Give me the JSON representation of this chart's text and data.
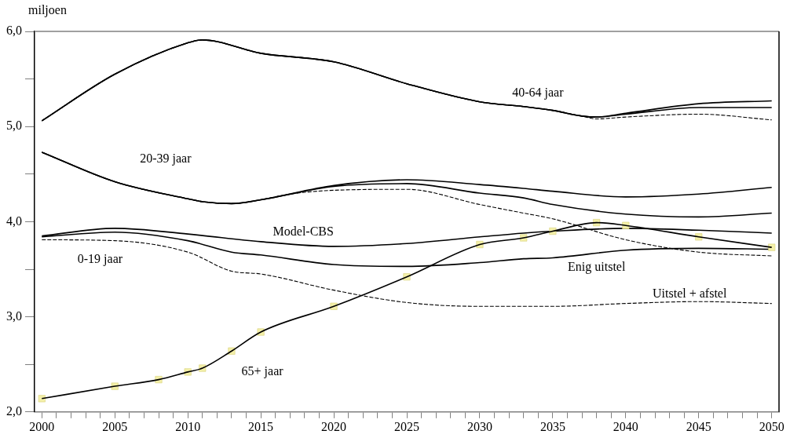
{
  "chart_data": {
    "type": "line",
    "ylabel": "miljoen",
    "xlim": [
      1999.5,
      2050.5
    ],
    "xticks": [
      2000,
      {
        "value": 2001,
        "label": null
      },
      {
        "value": 2002,
        "label": null
      },
      {
        "value": 2003,
        "label": null
      },
      {
        "value": 2004,
        "label": null
      },
      2005,
      {
        "value": 2006,
        "label": null
      },
      {
        "value": 2007,
        "label": null
      },
      {
        "value": 2008,
        "label": null
      },
      {
        "value": 2009,
        "label": null
      },
      2010,
      {
        "value": 2011,
        "label": null
      },
      {
        "value": 2012,
        "label": null
      },
      {
        "value": 2013,
        "label": null
      },
      {
        "value": 2014,
        "label": null
      },
      2015,
      {
        "value": 2016,
        "label": null
      },
      {
        "value": 2017,
        "label": null
      },
      {
        "value": 2018,
        "label": null
      },
      {
        "value": 2019,
        "label": null
      },
      2020,
      {
        "value": 2021,
        "label": null
      },
      {
        "value": 2022,
        "label": null
      },
      {
        "value": 2023,
        "label": null
      },
      {
        "value": 2024,
        "label": null
      },
      2025,
      {
        "value": 2026,
        "label": null
      },
      {
        "value": 2027,
        "label": null
      },
      {
        "value": 2028,
        "label": null
      },
      {
        "value": 2029,
        "label": null
      },
      2030,
      {
        "value": 2031,
        "label": null
      },
      {
        "value": 2032,
        "label": null
      },
      {
        "value": 2033,
        "label": null
      },
      {
        "value": 2034,
        "label": null
      },
      2035,
      {
        "value": 2036,
        "label": null
      },
      {
        "value": 2037,
        "label": null
      },
      {
        "value": 2038,
        "label": null
      },
      {
        "value": 2039,
        "label": null
      },
      2040,
      {
        "value": 2041,
        "label": null
      },
      {
        "value": 2042,
        "label": null
      },
      {
        "value": 2043,
        "label": null
      },
      {
        "value": 2044,
        "label": null
      },
      2045,
      {
        "value": 2046,
        "label": null
      },
      {
        "value": 2047,
        "label": null
      },
      {
        "value": 2048,
        "label": null
      },
      {
        "value": 2049,
        "label": null
      },
      2050
    ],
    "ylim": [
      2,
      6
    ],
    "yticks": [
      {
        "value": 2,
        "label": "2,0"
      },
      {
        "value": 2.5,
        "label": null
      },
      {
        "value": 3,
        "label": "3,0"
      },
      {
        "value": 3.5,
        "label": null
      },
      {
        "value": 4,
        "label": "4,0"
      },
      {
        "value": 4.5,
        "label": null
      },
      {
        "value": 5,
        "label": "5,0"
      },
      {
        "value": 5.5,
        "label": null
      },
      {
        "value": 6,
        "label": "6,0"
      }
    ],
    "grid": false,
    "legend": false,
    "marker": "none",
    "series": [
      {
        "color": "#000000",
        "line_style": "solid",
        "x": [
          2000,
          2005,
          2010,
          2011,
          2015,
          2020,
          2025,
          2030,
          2033,
          2035,
          2037,
          2038,
          2040,
          2045,
          2050
        ],
        "values": [
          5.06,
          5.55,
          5.88,
          5.91,
          5.77,
          5.68,
          5.45,
          5.26,
          5.21,
          5.17,
          5.11,
          5.1,
          5.14,
          5.24,
          5.27
        ]
      },
      {
        "color": "#000000",
        "line_style": "solid",
        "x": [
          2000,
          2005,
          2010,
          2011,
          2015,
          2020,
          2025,
          2030,
          2033,
          2035,
          2037,
          2038,
          2040,
          2045,
          2050
        ],
        "values": [
          5.06,
          5.55,
          5.88,
          5.91,
          5.77,
          5.68,
          5.45,
          5.26,
          5.21,
          5.17,
          5.11,
          5.1,
          5.13,
          5.2,
          5.2
        ]
      },
      {
        "color": "#000000",
        "line_style": "dashed",
        "x": [
          2000,
          2005,
          2010,
          2011,
          2015,
          2020,
          2025,
          2030,
          2033,
          2035,
          2037,
          2038,
          2040,
          2045,
          2050
        ],
        "values": [
          5.06,
          5.55,
          5.88,
          5.91,
          5.77,
          5.68,
          5.45,
          5.26,
          5.21,
          5.17,
          5.11,
          5.08,
          5.1,
          5.13,
          5.07
        ]
      },
      {
        "color": "#000000",
        "line_style": "solid",
        "x": [
          2000,
          2005,
          2010,
          2011,
          2013,
          2015,
          2020,
          2025,
          2030,
          2033,
          2035,
          2040,
          2045,
          2050
        ],
        "values": [
          4.73,
          4.42,
          4.24,
          4.21,
          4.19,
          4.23,
          4.38,
          4.44,
          4.39,
          4.35,
          4.32,
          4.26,
          4.29,
          4.36
        ]
      },
      {
        "color": "#000000",
        "line_style": "solid",
        "x": [
          2000,
          2005,
          2010,
          2011,
          2013,
          2015,
          2020,
          2025,
          2030,
          2033,
          2035,
          2040,
          2045,
          2050
        ],
        "values": [
          4.73,
          4.42,
          4.24,
          4.21,
          4.19,
          4.23,
          4.37,
          4.4,
          4.3,
          4.25,
          4.18,
          4.08,
          4.05,
          4.09
        ]
      },
      {
        "color": "#000000",
        "line_style": "dashed",
        "x": [
          2000,
          2005,
          2010,
          2011,
          2013,
          2015,
          2017,
          2020,
          2025,
          2030,
          2033,
          2035,
          2040,
          2045,
          2050
        ],
        "values": [
          4.73,
          4.42,
          4.24,
          4.21,
          4.19,
          4.23,
          4.29,
          4.33,
          4.34,
          4.18,
          4.09,
          4.03,
          3.81,
          3.68,
          3.64
        ]
      },
      {
        "color": "#000000",
        "line_style": "solid",
        "x": [
          2000,
          2005,
          2010,
          2015,
          2020,
          2025,
          2030,
          2033,
          2035,
          2040,
          2045,
          2050
        ],
        "values": [
          3.85,
          3.93,
          3.87,
          3.79,
          3.74,
          3.77,
          3.84,
          3.88,
          3.9,
          3.93,
          3.91,
          3.88
        ]
      },
      {
        "color": "#000000",
        "line_style": "solid",
        "x": [
          2000,
          2005,
          2010,
          2013,
          2015,
          2020,
          2025,
          2030,
          2033,
          2035,
          2040,
          2045,
          2050
        ],
        "values": [
          3.84,
          3.89,
          3.8,
          3.68,
          3.65,
          3.55,
          3.53,
          3.57,
          3.61,
          3.62,
          3.7,
          3.72,
          3.71
        ]
      },
      {
        "color": "#000000",
        "line_style": "dashed",
        "x": [
          2000,
          2005,
          2010,
          2013,
          2015,
          2020,
          2025,
          2030,
          2035,
          2040,
          2045,
          2050
        ],
        "values": [
          3.81,
          3.8,
          3.68,
          3.48,
          3.45,
          3.28,
          3.15,
          3.11,
          3.11,
          3.14,
          3.16,
          3.14
        ]
      },
      {
        "type": "scatter",
        "marker": "square",
        "color": "#f3efa8",
        "x": [
          2000,
          2005,
          2008,
          2010,
          2011,
          2013,
          2015,
          2020,
          2025,
          2030,
          2033,
          2035,
          2038,
          2040,
          2045,
          2050
        ],
        "values": [
          2.14,
          2.27,
          2.34,
          2.42,
          2.46,
          2.64,
          2.84,
          3.11,
          3.42,
          3.76,
          3.83,
          3.9,
          3.99,
          3.96,
          3.84,
          3.73
        ]
      },
      {
        "color": "#000000",
        "line_style": "solid",
        "x": [
          2000,
          2005,
          2008,
          2010,
          2011,
          2013,
          2015,
          2020,
          2025,
          2030,
          2033,
          2035,
          2038,
          2040,
          2045,
          2050
        ],
        "values": [
          2.14,
          2.27,
          2.34,
          2.42,
          2.46,
          2.64,
          2.84,
          3.11,
          3.42,
          3.76,
          3.83,
          3.9,
          3.99,
          3.96,
          3.84,
          3.73
        ]
      }
    ],
    "annotations": [
      "40-64 jaar",
      "20-39 jaar",
      "0-19 jaar",
      "65+ jaar",
      "Model-CBS",
      "Enig uitstel",
      "Uitstel + afstel"
    ]
  }
}
